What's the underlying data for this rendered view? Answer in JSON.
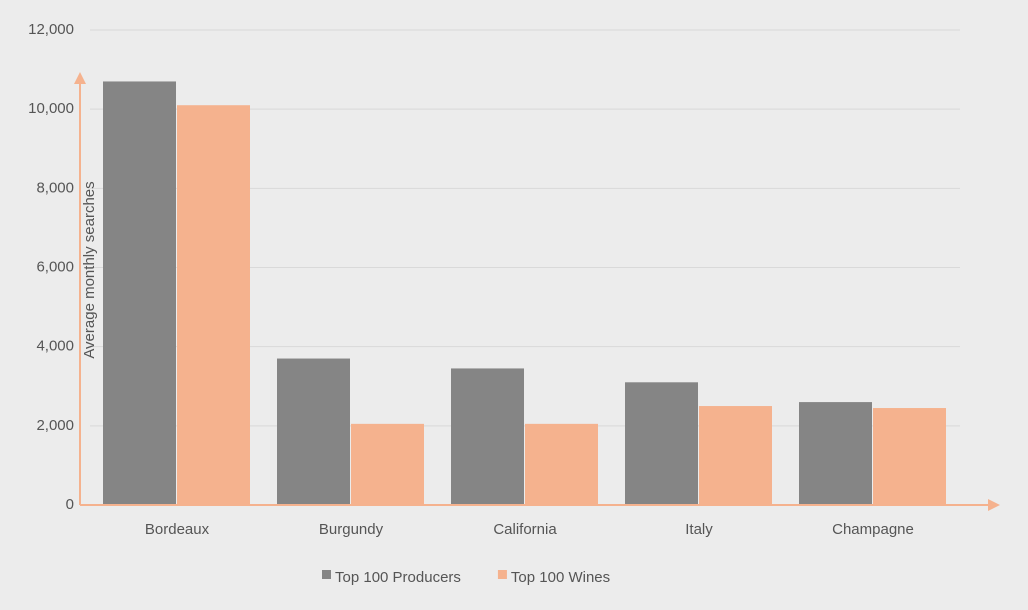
{
  "chart_data": {
    "type": "bar",
    "y_label": "Average monthly searches",
    "categories": [
      "Bordeaux",
      "Burgundy",
      "California",
      "Italy",
      "Champagne"
    ],
    "series": [
      {
        "name": "Top 100 Producers",
        "color": "#858585",
        "values": [
          10700,
          3700,
          3450,
          3100,
          2600
        ]
      },
      {
        "name": "Top 100 Wines",
        "color": "#f5b28e",
        "values": [
          10100,
          2050,
          2050,
          2500,
          2450
        ]
      }
    ],
    "ylim": [
      0,
      12000
    ],
    "yticks": [
      0,
      {
        "value": 2000,
        "label": "2,000"
      },
      {
        "value": 4000,
        "label": "4,000"
      },
      {
        "value": 6000,
        "label": "6,000"
      },
      {
        "value": 8000,
        "label": "8,000"
      },
      {
        "value": 10000,
        "label": "10,000"
      },
      {
        "value": 12000,
        "label": "12,000"
      }
    ],
    "grid": true,
    "axis_color": "#f5b28e",
    "legend": "bottom"
  }
}
